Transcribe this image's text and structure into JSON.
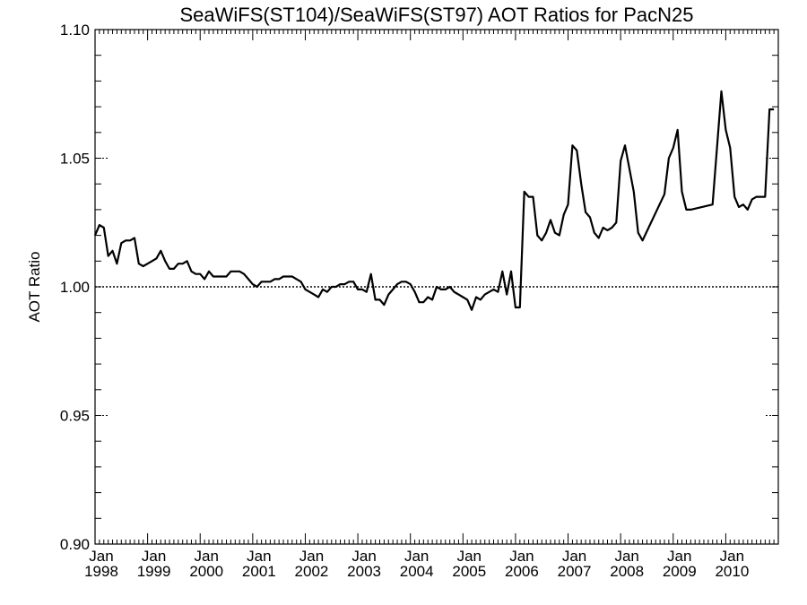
{
  "chart_data": {
    "type": "line",
    "title": "SeaWiFS(ST104)/SeaWiFS(ST97)  AOT Ratios for PacN25",
    "ylabel": "AOT Ratio",
    "xlabel": "",
    "xlim": [
      1998.0,
      2011.0
    ],
    "ylim": [
      0.9,
      1.1
    ],
    "reference_line": 1.0,
    "reference_style": "dotted",
    "grid": false,
    "line_color": "#000000",
    "y_ticks": [
      "0.90",
      "0.95",
      "1.00",
      "1.05",
      "1.10"
    ],
    "x_tick_months": [
      "Jan",
      "Jan",
      "Jan",
      "Jan",
      "Jan",
      "Jan",
      "Jan",
      "Jan",
      "Jan",
      "Jan",
      "Jan",
      "Jan",
      "Jan"
    ],
    "x_tick_years": [
      "1998",
      "1999",
      "2000",
      "2001",
      "2002",
      "2003",
      "2004",
      "2005",
      "2006",
      "2007",
      "2008",
      "2009",
      "2010"
    ],
    "series": [
      {
        "x": [
          "1998-01",
          "1998-02",
          "1998-03",
          "1998-04",
          "1998-05",
          "1998-06",
          "1998-07",
          "1998-08",
          "1998-09",
          "1998-10",
          "1998-11",
          "1998-12",
          "1999-01",
          "1999-02",
          "1999-03",
          "1999-04",
          "1999-05",
          "1999-06",
          "1999-07",
          "1999-08",
          "1999-09",
          "1999-10",
          "1999-11",
          "1999-12",
          "2000-01",
          "2000-02",
          "2000-03",
          "2000-04",
          "2000-05",
          "2000-06",
          "2000-07",
          "2000-08",
          "2000-09",
          "2000-10",
          "2000-11",
          "2000-12",
          "2001-01",
          "2001-02",
          "2001-03",
          "2001-04",
          "2001-05",
          "2001-06",
          "2001-07",
          "2001-08",
          "2001-09",
          "2001-10",
          "2001-11",
          "2001-12",
          "2002-01",
          "2002-02",
          "2002-03",
          "2002-04",
          "2002-05",
          "2002-06",
          "2002-07",
          "2002-08",
          "2002-09",
          "2002-10",
          "2002-11",
          "2002-12",
          "2003-01",
          "2003-02",
          "2003-03",
          "2003-04",
          "2003-05",
          "2003-06",
          "2003-07",
          "2003-08",
          "2003-09",
          "2003-10",
          "2003-11",
          "2003-12",
          "2004-01",
          "2004-02",
          "2004-03",
          "2004-04",
          "2004-05",
          "2004-06",
          "2004-07",
          "2004-08",
          "2004-09",
          "2004-10",
          "2004-11",
          "2004-12",
          "2005-01",
          "2005-02",
          "2005-03",
          "2005-04",
          "2005-05",
          "2005-06",
          "2005-07",
          "2005-08",
          "2005-09",
          "2005-10",
          "2005-11",
          "2005-12",
          "2006-01",
          "2006-02",
          "2006-03",
          "2006-04",
          "2006-05",
          "2006-06",
          "2006-07",
          "2006-08",
          "2006-09",
          "2006-10",
          "2006-11",
          "2006-12",
          "2007-01",
          "2007-02",
          "2007-03",
          "2007-04",
          "2007-05",
          "2007-06",
          "2007-07",
          "2007-08",
          "2007-09",
          "2007-10",
          "2007-11",
          "2007-12",
          "2008-01",
          "2008-02",
          "2008-04",
          "2008-05",
          "2008-06",
          "2008-11",
          "2008-12",
          "2009-01",
          "2009-02",
          "2009-03",
          "2009-04",
          "2009-05",
          "2009-10",
          "2009-12",
          "2010-01",
          "2010-02",
          "2010-03",
          "2010-04",
          "2010-05",
          "2010-06",
          "2010-07",
          "2010-08",
          "2010-09",
          "2010-10",
          "2010-11",
          "2010-12"
        ],
        "y": [
          1.02,
          1.024,
          1.023,
          1.012,
          1.014,
          1.009,
          1.017,
          1.018,
          1.018,
          1.019,
          1.009,
          1.008,
          1.009,
          1.01,
          1.011,
          1.014,
          1.01,
          1.007,
          1.007,
          1.009,
          1.009,
          1.01,
          1.006,
          1.005,
          1.005,
          1.003,
          1.006,
          1.004,
          1.004,
          1.004,
          1.004,
          1.006,
          1.006,
          1.006,
          1.005,
          1.003,
          1.001,
          1.0,
          1.002,
          1.002,
          1.002,
          1.003,
          1.003,
          1.004,
          1.004,
          1.004,
          1.003,
          1.002,
          0.999,
          0.998,
          0.997,
          0.996,
          0.999,
          0.998,
          1.0,
          1.0,
          1.001,
          1.001,
          1.002,
          1.002,
          0.999,
          0.999,
          0.998,
          1.005,
          0.995,
          0.995,
          0.993,
          0.997,
          0.999,
          1.001,
          1.002,
          1.002,
          1.001,
          0.998,
          0.994,
          0.994,
          0.996,
          0.995,
          1.0,
          0.999,
          0.999,
          1.0,
          0.998,
          0.997,
          0.996,
          0.995,
          0.991,
          0.996,
          0.995,
          0.997,
          0.998,
          0.999,
          0.998,
          1.006,
          0.997,
          1.006,
          0.992,
          0.992,
          1.037,
          1.035,
          1.035,
          1.02,
          1.018,
          1.021,
          1.026,
          1.021,
          1.02,
          1.028,
          1.032,
          1.055,
          1.053,
          1.04,
          1.029,
          1.027,
          1.021,
          1.019,
          1.023,
          1.022,
          1.023,
          1.025,
          1.049,
          1.055,
          1.037,
          1.021,
          1.018,
          1.036,
          1.05,
          1.054,
          1.061,
          1.037,
          1.03,
          1.03,
          1.032,
          1.076,
          1.061,
          1.054,
          1.035,
          1.031,
          1.032,
          1.03,
          1.034,
          1.035,
          1.035,
          1.035,
          1.069,
          1.069
        ]
      }
    ]
  }
}
